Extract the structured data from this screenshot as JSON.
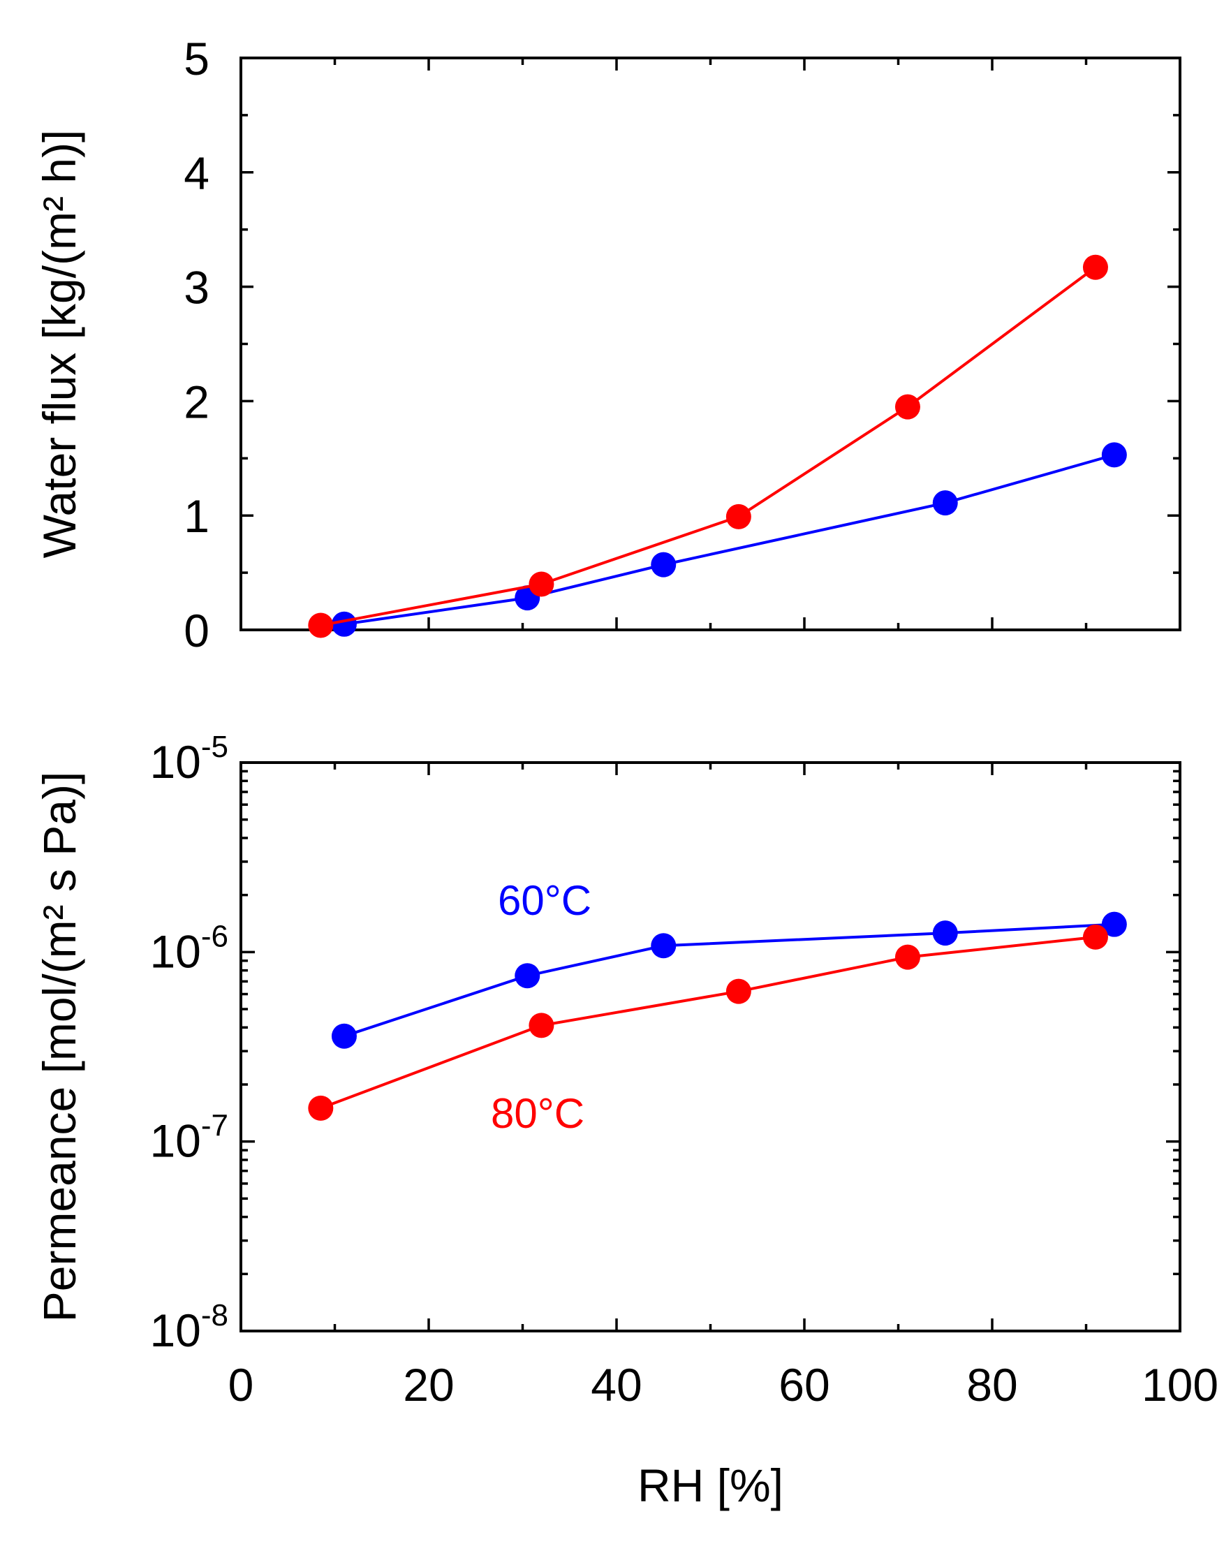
{
  "chart_data": [
    {
      "type": "line",
      "panel": "top",
      "title": "",
      "xlabel": "",
      "ylabel": "Water flux [kg/(m² h)]",
      "xlim": [
        0,
        100
      ],
      "ylim": [
        0,
        5
      ],
      "yscale": "linear",
      "yticks": [
        "0",
        "1",
        "2",
        "3",
        "4",
        "5"
      ],
      "series": [
        {
          "name": "60°C",
          "color": "#0000ff",
          "x": [
            11,
            30.5,
            45,
            75,
            93
          ],
          "y": [
            0.05,
            0.28,
            0.57,
            1.11,
            1.53
          ]
        },
        {
          "name": "80°C",
          "color": "#ff0000",
          "x": [
            8.5,
            32,
            53,
            71,
            91
          ],
          "y": [
            0.04,
            0.4,
            0.99,
            1.95,
            3.17
          ]
        }
      ]
    },
    {
      "type": "line",
      "panel": "bottom",
      "title": "",
      "xlabel": "RH [%]",
      "ylabel": "Permeance [mol/(m² s Pa)]",
      "xlim": [
        0,
        100
      ],
      "ylim": [
        1e-08,
        1e-05
      ],
      "yscale": "log",
      "xticks": [
        "0",
        "20",
        "40",
        "60",
        "80",
        "100"
      ],
      "yticks": [
        {
          "base": "10",
          "exp": "-8"
        },
        {
          "base": "10",
          "exp": "-7"
        },
        {
          "base": "10",
          "exp": "-6"
        },
        {
          "base": "10",
          "exp": "-5"
        }
      ],
      "annotations": [
        "60°C",
        "80°C"
      ],
      "series": [
        {
          "name": "60°C",
          "color": "#0000ff",
          "x": [
            11,
            30.5,
            45,
            75,
            93
          ],
          "y": [
            3.6e-07,
            7.5e-07,
            1.08e-06,
            1.26e-06,
            1.4e-06
          ]
        },
        {
          "name": "80°C",
          "color": "#ff0000",
          "x": [
            8.5,
            32,
            53,
            71,
            91
          ],
          "y": [
            1.5e-07,
            4.1e-07,
            6.2e-07,
            9.4e-07,
            1.2e-06
          ]
        }
      ]
    }
  ]
}
